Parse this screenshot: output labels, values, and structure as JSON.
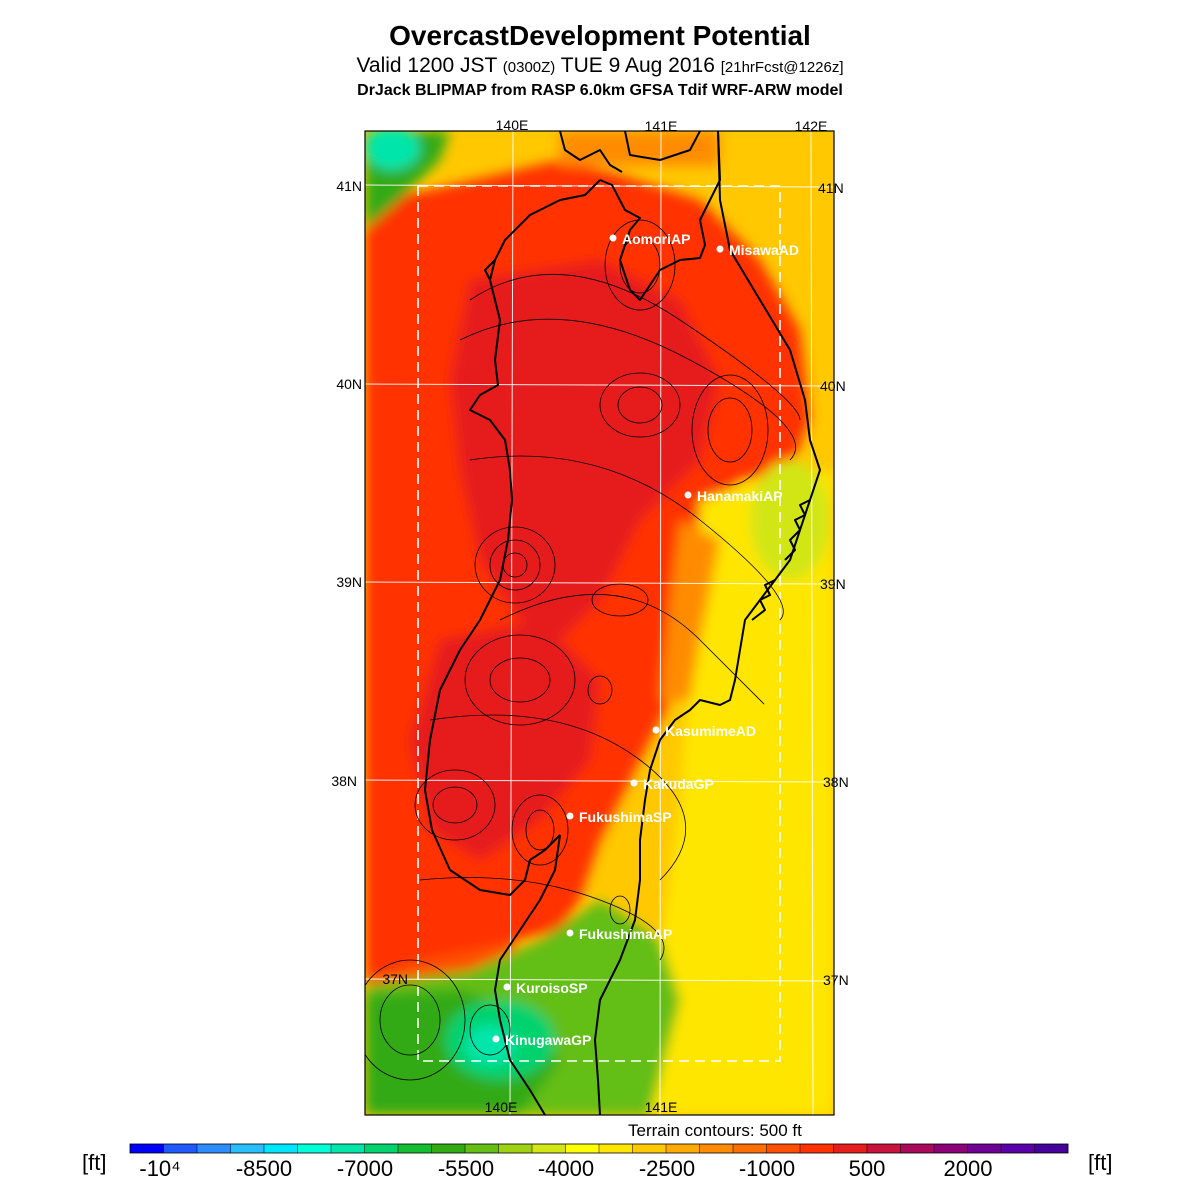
{
  "header": {
    "title": "OvercastDevelopment Potential",
    "valid_prefix": "Valid 1200 JST",
    "valid_utc": "(0300Z)",
    "valid_date": "TUE 9 Aug 2016",
    "forecast": "[21hrFcst@1226z]",
    "model": "DrJack BLIPMAP from RASP 6.0km GFSA Tdif WRF-ARW model"
  },
  "axes": {
    "top_lon": [
      "140E",
      "141E",
      "142E"
    ],
    "bottom_lon": [
      "140E",
      "141E"
    ],
    "left_lat": [
      "41N",
      "40N",
      "39N",
      "38N",
      "37N"
    ],
    "right_lat": [
      "41N",
      "40N",
      "39N",
      "38N",
      "37N"
    ]
  },
  "stations": [
    {
      "name": "AomoriAP"
    },
    {
      "name": "MisawaAD"
    },
    {
      "name": "HanamakiAP"
    },
    {
      "name": "KasumimeAD"
    },
    {
      "name": "KakudaGP"
    },
    {
      "name": "FukushimaSP"
    },
    {
      "name": "FukushimaAP"
    },
    {
      "name": "KuroisoSP"
    },
    {
      "name": "KinugawaGP"
    }
  ],
  "note": "Terrain contours: 500 ft",
  "colorbar": {
    "unit": "[ft]",
    "labels": [
      "-10⁴",
      "-8500",
      "-7000",
      "-5500",
      "-4000",
      "-2500",
      "-1000",
      "500",
      "2000"
    ],
    "colors": [
      "#0000ff",
      "#1e5aff",
      "#2d8cff",
      "#28beff",
      "#00e6ff",
      "#00ffd7",
      "#00e6aa",
      "#00d26e",
      "#14be32",
      "#32aa14",
      "#64be14",
      "#a0d214",
      "#d2e614",
      "#ffff00",
      "#ffe600",
      "#ffc800",
      "#ffaa00",
      "#ff8c00",
      "#ff6e00",
      "#ff5000",
      "#ff3200",
      "#e61e1e",
      "#c8143c",
      "#aa0a5a",
      "#8c0078",
      "#6e0096",
      "#5a00aa",
      "#46009b"
    ]
  },
  "colors": {
    "red": "#ff3200",
    "orange": "#ff8c00",
    "yellow": "#ffe600",
    "green": "#32aa14",
    "cyan": "#00e6aa"
  }
}
